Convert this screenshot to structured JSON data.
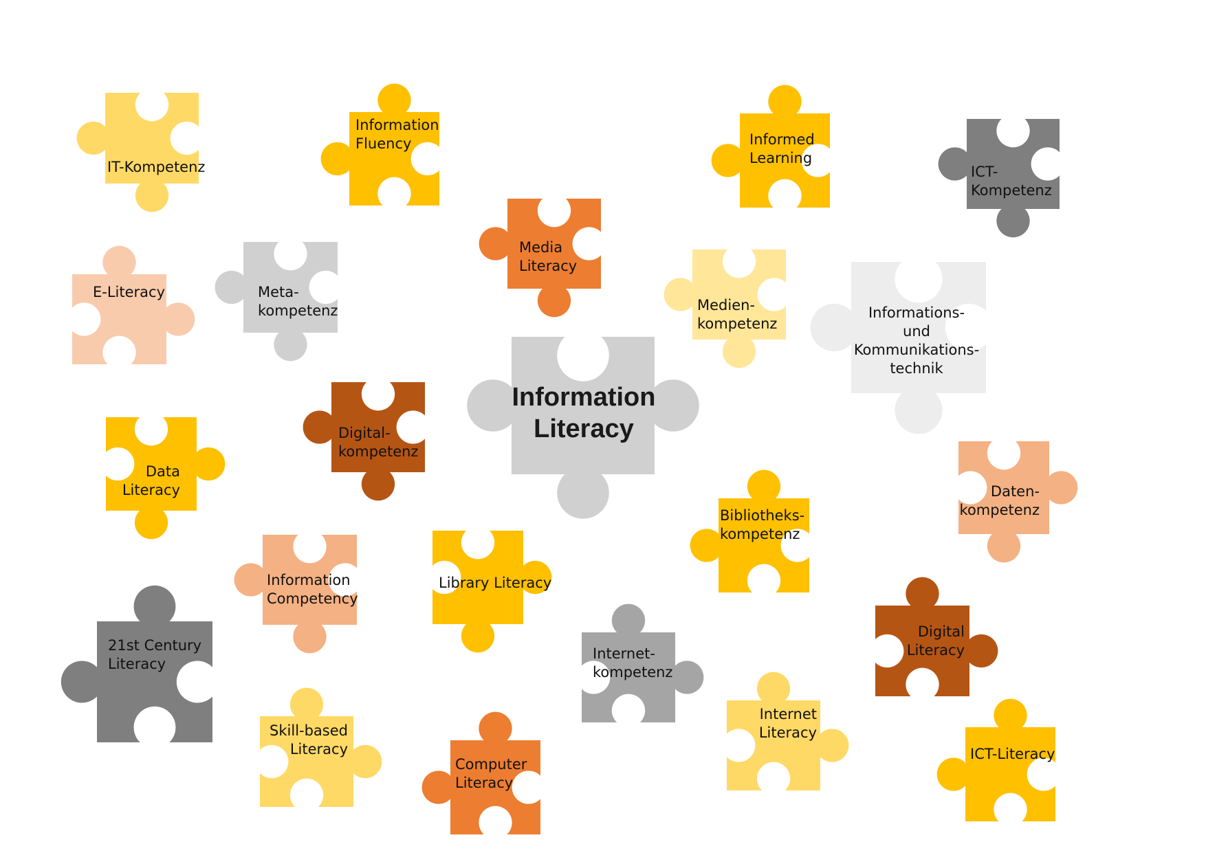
{
  "colors": {
    "gold": "#FFC000",
    "light_gold": "#FFD966",
    "pale_gold": "#FFE699",
    "orange": "#ED7D31",
    "light_orange": "#F4B183",
    "peach": "#F8CBAD",
    "brown": "#B55514",
    "dark_gray": "#7F7F7F",
    "mid_gray": "#A5A5A5",
    "light_gray": "#D0D0D0",
    "pale_gray": "#EDEDED",
    "text": "#111111"
  },
  "center": {
    "label": [
      "Information",
      "Literacy"
    ],
    "color": "light_gray"
  },
  "pieces": [
    {
      "id": "it-kompetenz",
      "label": [
        "IT-Kompetenz"
      ],
      "color": "light_gold"
    },
    {
      "id": "information-fluency",
      "label": [
        "Information",
        "Fluency"
      ],
      "color": "gold"
    },
    {
      "id": "informed-learning",
      "label": [
        "Informed",
        "Learning"
      ],
      "color": "gold"
    },
    {
      "id": "ict-kompetenz",
      "label": [
        "ICT-",
        "Kompetenz"
      ],
      "color": "dark_gray"
    },
    {
      "id": "media-literacy",
      "label": [
        "Media",
        "Literacy"
      ],
      "color": "orange"
    },
    {
      "id": "e-literacy",
      "label": [
        "E-Literacy"
      ],
      "color": "peach"
    },
    {
      "id": "metakompetenz",
      "label": [
        "Meta-",
        "kompetenz"
      ],
      "color": "light_gray"
    },
    {
      "id": "medienkompetenz",
      "label": [
        "Medien-",
        "kompetenz"
      ],
      "color": "pale_gold"
    },
    {
      "id": "iuk-technik",
      "label": [
        "Informations-",
        "und",
        "Kommunikations-",
        "technik"
      ],
      "color": "pale_gray"
    },
    {
      "id": "digitalkompetenz",
      "label": [
        "Digital-",
        "kompetenz"
      ],
      "color": "brown"
    },
    {
      "id": "data-literacy",
      "label": [
        "Data",
        "Literacy"
      ],
      "color": "gold"
    },
    {
      "id": "datenkompetenz",
      "label": [
        "Daten-",
        "kompetenz"
      ],
      "color": "light_orange"
    },
    {
      "id": "bibliothekskompetenz",
      "label": [
        "Bibliotheks-",
        "kompetenz"
      ],
      "color": "gold"
    },
    {
      "id": "information-competency",
      "label": [
        "Information",
        "Competency"
      ],
      "color": "light_orange"
    },
    {
      "id": "library-literacy",
      "label": [
        "Library Literacy"
      ],
      "color": "gold"
    },
    {
      "id": "21st-century-literacy",
      "label": [
        "21st Century",
        "Literacy"
      ],
      "color": "dark_gray"
    },
    {
      "id": "internetkompetenz",
      "label": [
        "Internet-",
        "kompetenz"
      ],
      "color": "mid_gray"
    },
    {
      "id": "digital-literacy",
      "label": [
        "Digital",
        "Literacy"
      ],
      "color": "brown"
    },
    {
      "id": "skill-based-literacy",
      "label": [
        "Skill-based",
        "Literacy"
      ],
      "color": "light_gold"
    },
    {
      "id": "computer-literacy",
      "label": [
        "Computer",
        "Literacy"
      ],
      "color": "orange"
    },
    {
      "id": "internet-literacy",
      "label": [
        "Internet",
        "Literacy"
      ],
      "color": "light_gold"
    },
    {
      "id": "ict-literacy",
      "label": [
        "ICT-Literacy"
      ],
      "color": "gold"
    }
  ]
}
